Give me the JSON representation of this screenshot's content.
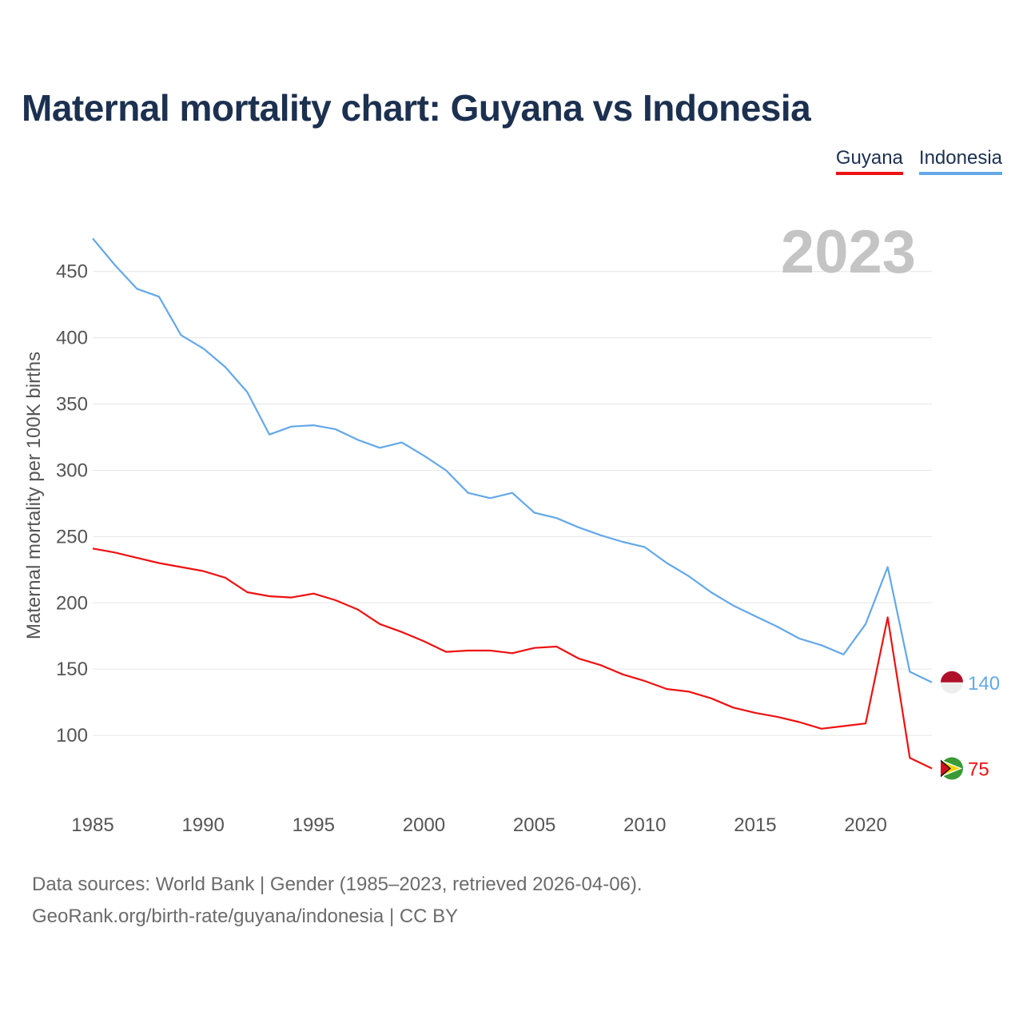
{
  "title": "Maternal mortality chart: Guyana vs Indonesia",
  "legend": [
    {
      "name": "Guyana",
      "color": "#ee1111"
    },
    {
      "name": "Indonesia",
      "color": "#64a8e8"
    }
  ],
  "year_label": "2023",
  "footer": {
    "line1": "Data sources: World Bank | Gender (1985–2023, retrieved 2026-04-06).",
    "line2": "GeoRank.org/birth-rate/guyana/indonesia | CC BY"
  },
  "chart_data": {
    "type": "line",
    "title": "Maternal mortality chart: Guyana vs Indonesia",
    "xlabel": "",
    "ylabel": "Maternal mortality per 100K births",
    "xlim": [
      1985,
      2023
    ],
    "ylim": [
      50,
      480
    ],
    "x_ticks": [
      1985,
      1990,
      1995,
      2000,
      2005,
      2010,
      2015,
      2020
    ],
    "y_ticks": [
      100,
      150,
      200,
      250,
      300,
      350,
      400,
      450
    ],
    "x": [
      1985,
      1986,
      1987,
      1988,
      1989,
      1990,
      1991,
      1992,
      1993,
      1994,
      1995,
      1996,
      1997,
      1998,
      1999,
      2000,
      2001,
      2002,
      2003,
      2004,
      2005,
      2006,
      2007,
      2008,
      2009,
      2010,
      2011,
      2012,
      2013,
      2014,
      2015,
      2016,
      2017,
      2018,
      2019,
      2020,
      2021,
      2022,
      2023
    ],
    "series": [
      {
        "name": "Guyana",
        "color": "#ee1111",
        "end_label": "75",
        "values": [
          241,
          238,
          234,
          230,
          227,
          224,
          219,
          208,
          205,
          204,
          207,
          202,
          195,
          184,
          178,
          171,
          163,
          164,
          164,
          162,
          166,
          167,
          158,
          153,
          146,
          141,
          135,
          133,
          128,
          121,
          117,
          114,
          110,
          105,
          107,
          109,
          189,
          83,
          75
        ]
      },
      {
        "name": "Indonesia",
        "color": "#64a8e8",
        "end_label": "140",
        "values": [
          475,
          455,
          437,
          431,
          402,
          392,
          378,
          359,
          327,
          333,
          334,
          331,
          323,
          317,
          321,
          311,
          300,
          283,
          279,
          283,
          268,
          264,
          257,
          251,
          246,
          242,
          230,
          220,
          208,
          198,
          190,
          182,
          173,
          168,
          161,
          184,
          227,
          148,
          140
        ]
      }
    ]
  }
}
